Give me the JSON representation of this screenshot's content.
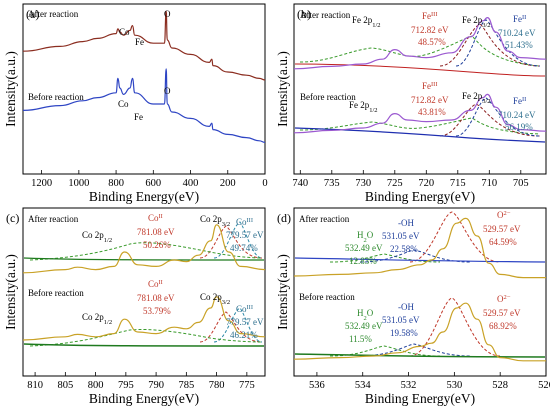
{
  "chart_data": [
    {
      "panel": "(a)",
      "type": "line",
      "xlabel": "Binding Energy(eV)",
      "ylabel": "Intensity(a.u.)",
      "xlim": [
        1300,
        0
      ],
      "xticks": [
        1200,
        1000,
        800,
        600,
        400,
        200,
        0
      ],
      "tick_labels": [
        "1200",
        "1000",
        "800",
        "600",
        "400",
        "200",
        "0"
      ],
      "ylim": [
        0,
        1
      ],
      "texts": [
        "After reaction",
        "Before reaction"
      ],
      "annotations": [
        "Co",
        "Fe",
        "O",
        "Co",
        "Fe",
        "O"
      ],
      "series": [
        {
          "label": "After reaction",
          "color": "#8B2D20",
          "x": [
            1300,
            1100,
            980,
            900,
            800,
            790,
            780,
            760,
            725,
            712,
            700,
            600,
            540,
            531,
            525,
            500,
            400,
            300,
            285,
            280,
            200,
            100,
            30,
            0
          ],
          "y": [
            0.73,
            0.76,
            0.79,
            0.81,
            0.84,
            0.87,
            0.85,
            0.83,
            0.86,
            0.89,
            0.83,
            0.78,
            0.78,
            0.98,
            0.8,
            0.75,
            0.71,
            0.66,
            0.68,
            0.64,
            0.6,
            0.58,
            0.56,
            0.55
          ]
        },
        {
          "label": "Before reaction",
          "color": "#2E45C4",
          "x": [
            1300,
            1100,
            980,
            900,
            800,
            790,
            780,
            760,
            725,
            712,
            700,
            600,
            540,
            531,
            525,
            500,
            400,
            300,
            285,
            280,
            200,
            100,
            30,
            0
          ],
          "y": [
            0.36,
            0.39,
            0.42,
            0.44,
            0.47,
            0.56,
            0.5,
            0.46,
            0.5,
            0.56,
            0.47,
            0.4,
            0.4,
            0.62,
            0.4,
            0.35,
            0.31,
            0.26,
            0.28,
            0.24,
            0.21,
            0.19,
            0.17,
            0.16
          ]
        }
      ]
    },
    {
      "panel": "(b)",
      "type": "line",
      "xlabel": "Binding Energy(eV)",
      "ylabel": "Intensity(a.u.)",
      "xlim": [
        741,
        701
      ],
      "xticks": [
        740,
        735,
        730,
        725,
        720,
        715,
        710,
        705
      ],
      "tick_labels": [
        "740",
        "735",
        "730",
        "725",
        "720",
        "715",
        "710",
        "705"
      ],
      "ylim": [
        0,
        1
      ],
      "texts": [
        "After reaction",
        "Before reaction"
      ],
      "annotations": [
        "Fe 2p1/2",
        "FeIII",
        "712.82 eV",
        "48.57%",
        "Fe 2p3/2",
        "FeII",
        "710.24 eV",
        "51.43%",
        "Fe 2p1/2",
        "FeIII",
        "712.82 eV",
        "43.81%",
        "Fe 2p3/2",
        "FeII",
        "710.24 eV",
        "56.19%"
      ],
      "series": [
        {
          "label": "After reaction (FeII 710.24 eV, 51.43%; FeIII 712.82 eV, 48.57%)",
          "color": "#9B59D0",
          "x": [
            741,
            735,
            730,
            727,
            725,
            723,
            720,
            716,
            713,
            711,
            710.3,
            709,
            707,
            705,
            701
          ],
          "y": [
            0.62,
            0.635,
            0.65,
            0.68,
            0.74,
            0.7,
            0.69,
            0.72,
            0.82,
            0.92,
            0.94,
            0.85,
            0.73,
            0.69,
            0.68
          ]
        },
        {
          "label": "Before reaction (FeII 710.24 eV, 56.19%; FeIII 712.82 eV, 43.81%)",
          "color": "#9B59D0",
          "x": [
            741,
            735,
            730,
            727,
            725,
            723,
            720,
            716,
            713,
            711,
            710.3,
            709,
            707,
            705,
            701
          ],
          "y": [
            0.22,
            0.235,
            0.25,
            0.28,
            0.34,
            0.3,
            0.29,
            0.3,
            0.36,
            0.44,
            0.46,
            0.38,
            0.27,
            0.24,
            0.23
          ]
        }
      ]
    },
    {
      "panel": "(c)",
      "type": "line",
      "xlabel": "Binding Energy(eV)",
      "ylabel": "Intensity(a.u.)",
      "xlim": [
        812,
        772
      ],
      "xticks": [
        810,
        805,
        800,
        795,
        790,
        785,
        780,
        775
      ],
      "tick_labels": [
        "810",
        "805",
        "800",
        "795",
        "790",
        "785",
        "780",
        "775"
      ],
      "ylim": [
        0,
        1
      ],
      "texts": [
        "After reaction",
        "Before reaction"
      ],
      "annotations": [
        "Co 2p1/2",
        "CoII",
        "781.08 eV",
        "50.26%",
        "Co 2p3/2",
        "CoIII",
        "779.57 eV",
        "49.74%",
        "Co 2p1/2",
        "CoII",
        "781.08 eV",
        "53.79%",
        "Co 2p3/2",
        "CoIII",
        "779.57 eV",
        "46.21%"
      ],
      "series": [
        {
          "label": "After reaction (CoII 781.08 eV, 50.26%; CoIII 779.57 eV, 49.74%)",
          "color": "#C9A227",
          "x": [
            812,
            805,
            803,
            800,
            797,
            795.2,
            793,
            790,
            787,
            785,
            783,
            781,
            780,
            778,
            776,
            772
          ],
          "y": [
            0.62,
            0.64,
            0.655,
            0.64,
            0.66,
            0.75,
            0.67,
            0.66,
            0.7,
            0.69,
            0.73,
            0.82,
            0.92,
            0.75,
            0.66,
            0.64
          ]
        },
        {
          "label": "Before reaction (CoII 781.08 eV, 53.79%; CoIII 779.57 eV, 46.21%)",
          "color": "#C9A227",
          "x": [
            812,
            805,
            803,
            800,
            797,
            795.2,
            793,
            790,
            787,
            785,
            783,
            781,
            780,
            778,
            776,
            772
          ],
          "y": [
            0.2,
            0.22,
            0.235,
            0.22,
            0.24,
            0.33,
            0.25,
            0.24,
            0.28,
            0.27,
            0.31,
            0.4,
            0.47,
            0.32,
            0.24,
            0.22
          ]
        }
      ]
    },
    {
      "panel": "(d)",
      "type": "line",
      "xlabel": "Binding Energy(eV)",
      "ylabel": "Intensity(a.u.)",
      "xlim": [
        537,
        526
      ],
      "xticks": [
        536,
        534,
        532,
        530,
        528,
        526
      ],
      "tick_labels": [
        "536",
        "534",
        "532",
        "530",
        "528",
        "526"
      ],
      "ylim": [
        0,
        1
      ],
      "texts": [
        "After reaction",
        "Before reaction"
      ],
      "annotations": [
        "H2O",
        "532.49 eV",
        "12.83%",
        "-OH",
        "531.05 eV",
        "22.58%",
        "O2−",
        "529.57 eV",
        "64.59%",
        "H2O",
        "532.49 eV",
        "11.5%",
        "-OH",
        "531.05 eV",
        "19.58%",
        "O2−",
        "529.57 eV",
        "68.92%"
      ],
      "series": [
        {
          "label": "After reaction (O2− 529.57 eV, 64.59%; -OH 531.05 eV, 22.58%; H2O 532.49 eV, 12.83%)",
          "color": "#C9A227",
          "x": [
            537,
            535,
            533.5,
            532.5,
            531.5,
            531,
            530.5,
            529.9,
            529.5,
            529,
            528.5,
            528,
            527,
            526
          ],
          "y": [
            0.6,
            0.61,
            0.62,
            0.64,
            0.67,
            0.7,
            0.77,
            0.93,
            0.96,
            0.85,
            0.68,
            0.61,
            0.59,
            0.59
          ]
        },
        {
          "label": "Before reaction (O2− 529.57 eV, 68.92%; -OH 531.05 eV, 19.58%; H2O 532.49 eV, 11.5%)",
          "color": "#C9A227",
          "x": [
            537,
            535,
            533.5,
            532.5,
            531.5,
            531,
            530.5,
            529.9,
            529.5,
            529,
            528.5,
            528,
            527,
            526
          ],
          "y": [
            0.08,
            0.09,
            0.1,
            0.12,
            0.16,
            0.18,
            0.25,
            0.4,
            0.43,
            0.33,
            0.17,
            0.09,
            0.07,
            0.07
          ]
        }
      ]
    }
  ]
}
